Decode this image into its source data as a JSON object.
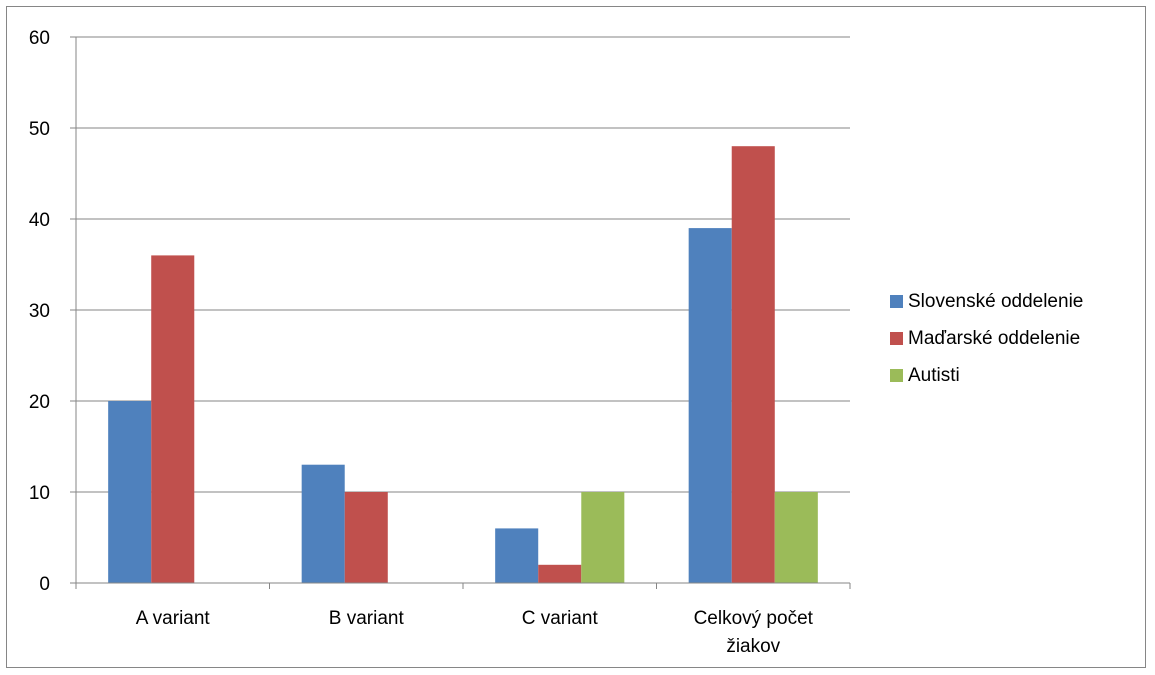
{
  "chart_data": {
    "type": "bar",
    "title": "",
    "xlabel": "",
    "ylabel": "",
    "ylim": [
      0,
      60
    ],
    "yticks": [
      0,
      10,
      20,
      30,
      40,
      50,
      60
    ],
    "grid": true,
    "legend_position": "right",
    "categories": [
      [
        "A variant"
      ],
      [
        "B variant"
      ],
      [
        "C variant"
      ],
      [
        "Celkový počet",
        "žiakov"
      ]
    ],
    "series": [
      {
        "name": "Slovenské oddelenie",
        "color": "#4F81BD",
        "values": [
          20,
          13,
          6,
          39
        ]
      },
      {
        "name": "Maďarské oddelenie",
        "color": "#C0504D",
        "values": [
          36,
          10,
          2,
          48
        ]
      },
      {
        "name": "Autisti",
        "color": "#9BBB59",
        "values": [
          0,
          0,
          10,
          10
        ]
      }
    ]
  }
}
